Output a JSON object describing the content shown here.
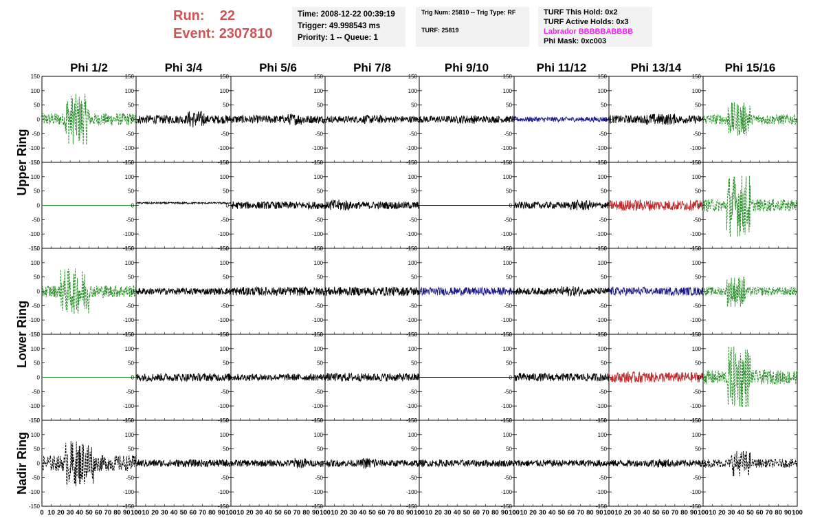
{
  "header": {
    "run_label": "Run:",
    "run_value": "22",
    "event_label": "Event:",
    "event_value": "2307810",
    "run_color": "#cc5555",
    "time": "Time: 2008-12-22 00:39:19",
    "trigger": "Trigger: 49.998543 ms",
    "priority": "Priority: 1 -- Queue: 1",
    "trig_num": "Trig Num: 25810 -- Trig Type: RF",
    "turf": "TURF: 25819",
    "turf_hold": "TURF This Hold: 0x2",
    "turf_active": "TURF Active Holds: 0x3",
    "labrador": "Labrador BBBBBABBBB",
    "labrador_color": "#ee22ee",
    "phi_mask": "Phi Mask: 0xc003"
  },
  "chart_data": {
    "type": "line",
    "columns": [
      "Phi 1/2",
      "Phi 3/4",
      "Phi 5/6",
      "Phi 7/8",
      "Phi 9/10",
      "Phi 11/12",
      "Phi 13/14",
      "Phi 15/16"
    ],
    "row_groups": [
      {
        "label": "Upper Ring",
        "rows": [
          0,
          1
        ]
      },
      {
        "label": "Lower Ring",
        "rows": [
          2,
          3
        ]
      },
      {
        "label": "Nadir Ring",
        "rows": [
          4
        ]
      }
    ],
    "xlim": [
      0,
      100
    ],
    "xticks": [
      "0",
      "10",
      "20",
      "30",
      "40",
      "50",
      "60",
      "70",
      "80",
      "90",
      "100"
    ],
    "ylim": [
      -150,
      150
    ],
    "yticks": [
      "150",
      "100",
      "50",
      "0",
      "-50",
      "-100",
      "-150"
    ],
    "colors": {
      "black": "#000000",
      "green": "#228b22",
      "blue": "#1a1a8c",
      "red": "#c0282a"
    },
    "panels": [
      [
        {
          "color": "green",
          "dash": true,
          "amp": 22,
          "burst": [
            25,
            50,
            90
          ]
        },
        {
          "color": "black",
          "dash": false,
          "amp": 15,
          "burst": [
            55,
            72,
            30
          ]
        },
        {
          "color": "black",
          "dash": false,
          "amp": 14,
          "burst": [
            60,
            80,
            20
          ]
        },
        {
          "color": "black",
          "dash": false,
          "amp": 12,
          "burst": [
            40,
            60,
            15
          ]
        },
        {
          "color": "black",
          "dash": false,
          "amp": 12,
          "burst": [
            40,
            60,
            15
          ]
        },
        {
          "color": "blue",
          "dash": false,
          "amp": 9,
          "burst": null
        },
        {
          "color": "black",
          "dash": false,
          "amp": 14,
          "burst": [
            40,
            70,
            20
          ]
        },
        {
          "color": "green",
          "dash": true,
          "amp": 18,
          "burst": [
            25,
            50,
            60
          ]
        }
      ],
      [
        {
          "color": "green",
          "dash": false,
          "amp": 0,
          "burst": null
        },
        {
          "color": "black",
          "dash": false,
          "amp": 3,
          "burst": null
        },
        {
          "color": "black",
          "dash": false,
          "amp": 13,
          "burst": null
        },
        {
          "color": "black",
          "dash": false,
          "amp": 13,
          "burst": [
            5,
            25,
            20
          ]
        },
        {
          "color": "black",
          "dash": false,
          "amp": 0,
          "burst": null
        },
        {
          "color": "black",
          "dash": false,
          "amp": 12,
          "burst": [
            60,
            80,
            18
          ]
        },
        {
          "color": "red",
          "dash": false,
          "amp": 18,
          "burst": [
            15,
            45,
            20
          ]
        },
        {
          "color": "green",
          "dash": true,
          "amp": 22,
          "burst": [
            25,
            50,
            110
          ]
        }
      ],
      [
        {
          "color": "green",
          "dash": true,
          "amp": 22,
          "burst": [
            20,
            50,
            80
          ]
        },
        {
          "color": "black",
          "dash": false,
          "amp": 12,
          "burst": null
        },
        {
          "color": "black",
          "dash": false,
          "amp": 15,
          "burst": null
        },
        {
          "color": "black",
          "dash": false,
          "amp": 16,
          "burst": [
            20,
            60,
            15
          ]
        },
        {
          "color": "blue",
          "dash": false,
          "amp": 14,
          "burst": null
        },
        {
          "color": "black",
          "dash": false,
          "amp": 12,
          "burst": [
            50,
            70,
            18
          ]
        },
        {
          "color": "blue",
          "dash": false,
          "amp": 15,
          "burst": [
            40,
            60,
            12
          ]
        },
        {
          "color": "green",
          "dash": true,
          "amp": 15,
          "burst": [
            25,
            45,
            55
          ]
        }
      ],
      [
        {
          "color": "green",
          "dash": false,
          "amp": 0,
          "burst": null
        },
        {
          "color": "black",
          "dash": false,
          "amp": 14,
          "burst": null
        },
        {
          "color": "black",
          "dash": false,
          "amp": 12,
          "burst": null
        },
        {
          "color": "black",
          "dash": false,
          "amp": 14,
          "burst": [
            10,
            30,
            15
          ]
        },
        {
          "color": "black",
          "dash": false,
          "amp": 0,
          "burst": null
        },
        {
          "color": "black",
          "dash": false,
          "amp": 14,
          "burst": [
            5,
            20,
            15
          ]
        },
        {
          "color": "red",
          "dash": false,
          "amp": 18,
          "burst": [
            15,
            40,
            20
          ]
        },
        {
          "color": "green",
          "dash": true,
          "amp": 25,
          "burst": [
            25,
            50,
            110
          ]
        }
      ],
      [
        {
          "color": "black",
          "dash": true,
          "amp": 28,
          "burst": [
            25,
            55,
            80
          ]
        },
        {
          "color": "black",
          "dash": false,
          "amp": 13,
          "burst": null
        },
        {
          "color": "black",
          "dash": false,
          "amp": 12,
          "burst": [
            65,
            80,
            18
          ]
        },
        {
          "color": "black",
          "dash": false,
          "amp": 12,
          "burst": [
            40,
            55,
            20
          ]
        },
        {
          "color": "black",
          "dash": false,
          "amp": 12,
          "burst": null
        },
        {
          "color": "black",
          "dash": false,
          "amp": 12,
          "burst": [
            40,
            60,
            12
          ]
        },
        {
          "color": "black",
          "dash": false,
          "amp": 12,
          "burst": [
            45,
            65,
            15
          ]
        },
        {
          "color": "black",
          "dash": true,
          "amp": 15,
          "burst": [
            30,
            50,
            45
          ]
        }
      ]
    ]
  }
}
